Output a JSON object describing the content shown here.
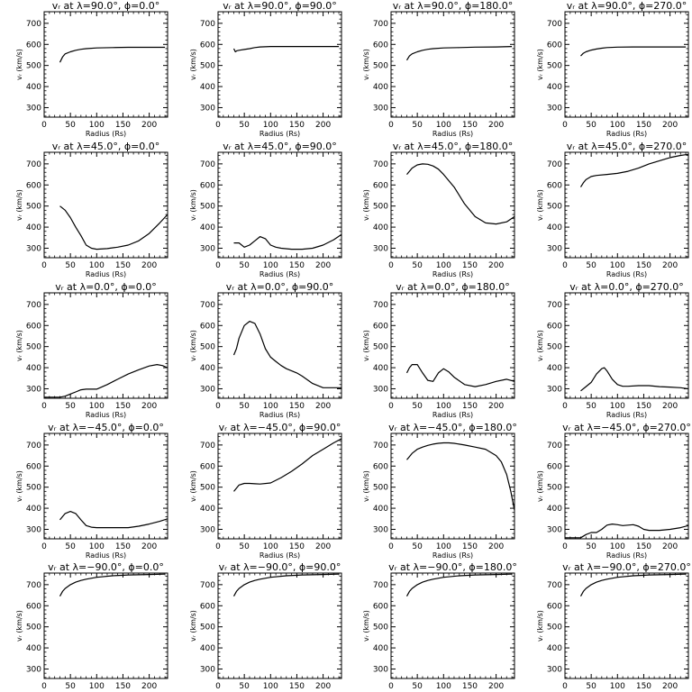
{
  "figure": {
    "xlabel": "Radius (Rs)",
    "ylabel": "vᵣ (km/s)",
    "xlim": [
      0,
      235
    ],
    "ylim": [
      255,
      755
    ],
    "xticks": [
      0,
      50,
      100,
      150,
      200
    ],
    "yticks": [
      300,
      400,
      500,
      600,
      700
    ]
  },
  "chart_data": [
    {
      "type": "line",
      "title": "vᵣ at λ=90.0°, ϕ=0.0°",
      "x": [
        30,
        35,
        40,
        50,
        60,
        70,
        80,
        100,
        130,
        160,
        200,
        230
      ],
      "values": [
        515,
        540,
        555,
        565,
        572,
        577,
        580,
        583,
        585,
        586,
        586,
        586
      ]
    },
    {
      "type": "line",
      "title": "vᵣ at λ=90.0°, ϕ=90.0°",
      "x": [
        30,
        33,
        36,
        40,
        50,
        60,
        70,
        80,
        100,
        150,
        200,
        230
      ],
      "values": [
        580,
        565,
        570,
        572,
        576,
        580,
        585,
        588,
        590,
        590,
        590,
        590
      ]
    },
    {
      "type": "line",
      "title": "vᵣ at λ=90.0°, ϕ=180.0°",
      "x": [
        30,
        35,
        40,
        50,
        60,
        70,
        80,
        100,
        130,
        160,
        200,
        230
      ],
      "values": [
        525,
        545,
        555,
        565,
        572,
        577,
        580,
        583,
        585,
        587,
        588,
        590
      ]
    },
    {
      "type": "line",
      "title": "vᵣ at λ=90.0°, ϕ=270.0°",
      "x": [
        30,
        35,
        40,
        50,
        60,
        70,
        80,
        100,
        130,
        160,
        200,
        230
      ],
      "values": [
        545,
        558,
        565,
        573,
        578,
        582,
        585,
        587,
        588,
        588,
        588,
        588
      ]
    },
    {
      "type": "line",
      "title": "vᵣ at λ=45.0°, ϕ=0.0°",
      "x": [
        30,
        40,
        50,
        60,
        70,
        80,
        90,
        100,
        120,
        140,
        160,
        180,
        200,
        220,
        235
      ],
      "values": [
        500,
        480,
        445,
        400,
        360,
        315,
        300,
        295,
        298,
        305,
        315,
        335,
        370,
        420,
        460
      ]
    },
    {
      "type": "line",
      "title": "vᵣ at λ=45.0°, ϕ=90.0°",
      "x": [
        30,
        40,
        50,
        60,
        70,
        80,
        90,
        100,
        110,
        120,
        140,
        160,
        180,
        200,
        220,
        235
      ],
      "values": [
        325,
        325,
        305,
        315,
        335,
        355,
        345,
        315,
        305,
        300,
        295,
        295,
        300,
        315,
        340,
        365
      ]
    },
    {
      "type": "line",
      "title": "vᵣ at λ=45.0°, ϕ=180.0°",
      "x": [
        30,
        40,
        50,
        60,
        70,
        80,
        90,
        100,
        120,
        140,
        160,
        180,
        200,
        220,
        235
      ],
      "values": [
        650,
        680,
        695,
        700,
        698,
        690,
        675,
        650,
        590,
        510,
        450,
        420,
        415,
        425,
        450
      ]
    },
    {
      "type": "line",
      "title": "vᵣ at λ=45.0°, ϕ=270.0°",
      "x": [
        30,
        35,
        40,
        50,
        60,
        80,
        100,
        120,
        140,
        160,
        180,
        200,
        220,
        235
      ],
      "values": [
        590,
        610,
        625,
        640,
        645,
        650,
        655,
        665,
        680,
        700,
        715,
        730,
        740,
        745
      ]
    },
    {
      "type": "line",
      "title": "vᵣ at λ=0.0°, ϕ=0.0°",
      "x": [
        0,
        30,
        40,
        50,
        60,
        70,
        80,
        100,
        120,
        140,
        160,
        180,
        200,
        215,
        225,
        235
      ],
      "values": [
        260,
        260,
        265,
        275,
        285,
        295,
        298,
        298,
        320,
        345,
        370,
        390,
        408,
        415,
        410,
        400
      ]
    },
    {
      "type": "line",
      "title": "vᵣ at λ=0.0°, ϕ=90.0°",
      "x": [
        30,
        35,
        40,
        50,
        60,
        70,
        80,
        90,
        100,
        110,
        120,
        130,
        140,
        150,
        160,
        180,
        200,
        235
      ],
      "values": [
        460,
        490,
        540,
        600,
        620,
        610,
        560,
        490,
        450,
        430,
        410,
        395,
        385,
        375,
        360,
        325,
        305,
        305
      ]
    },
    {
      "type": "line",
      "title": "vᵣ at λ=0.0°, ϕ=180.0°",
      "x": [
        30,
        35,
        40,
        50,
        60,
        70,
        80,
        90,
        100,
        110,
        120,
        140,
        160,
        180,
        200,
        220,
        235
      ],
      "values": [
        375,
        400,
        415,
        415,
        375,
        340,
        335,
        375,
        395,
        380,
        355,
        320,
        310,
        320,
        335,
        345,
        335
      ]
    },
    {
      "type": "line",
      "title": "vᵣ at λ=0.0°, ϕ=270.0°",
      "x": [
        30,
        40,
        50,
        60,
        70,
        75,
        80,
        90,
        100,
        110,
        120,
        140,
        160,
        180,
        200,
        220,
        235
      ],
      "values": [
        290,
        310,
        330,
        370,
        395,
        400,
        385,
        345,
        320,
        312,
        312,
        315,
        315,
        310,
        308,
        305,
        300
      ]
    },
    {
      "type": "line",
      "title": "vᵣ at λ=−45.0°, ϕ=0.0°",
      "x": [
        30,
        40,
        50,
        60,
        70,
        80,
        90,
        100,
        130,
        160,
        180,
        200,
        220,
        235
      ],
      "values": [
        345,
        375,
        385,
        375,
        345,
        318,
        310,
        308,
        308,
        308,
        315,
        325,
        338,
        350
      ]
    },
    {
      "type": "line",
      "title": "vᵣ at λ=−45.0°, ϕ=90.0°",
      "x": [
        30,
        40,
        50,
        60,
        70,
        80,
        100,
        120,
        140,
        160,
        180,
        200,
        220,
        235
      ],
      "values": [
        480,
        510,
        518,
        518,
        516,
        515,
        520,
        545,
        575,
        610,
        650,
        680,
        710,
        730
      ]
    },
    {
      "type": "line",
      "title": "vᵣ at λ=−45.0°, ϕ=180.0°",
      "x": [
        30,
        40,
        50,
        60,
        70,
        80,
        90,
        100,
        110,
        120,
        140,
        160,
        180,
        200,
        210,
        220,
        228,
        235
      ],
      "values": [
        630,
        660,
        680,
        690,
        698,
        704,
        708,
        710,
        710,
        708,
        700,
        690,
        680,
        650,
        620,
        560,
        480,
        390
      ]
    },
    {
      "type": "line",
      "title": "vᵣ at λ=−45.0°, ϕ=270.0°",
      "x": [
        0,
        30,
        40,
        50,
        60,
        70,
        80,
        90,
        100,
        110,
        120,
        130,
        140,
        150,
        160,
        180,
        200,
        220,
        235
      ],
      "values": [
        260,
        260,
        275,
        285,
        285,
        300,
        320,
        325,
        322,
        318,
        320,
        322,
        315,
        300,
        295,
        295,
        300,
        308,
        318
      ]
    },
    {
      "type": "line",
      "title": "vᵣ at λ=−90.0°, ϕ=0.0°",
      "x": [
        30,
        35,
        40,
        50,
        60,
        70,
        80,
        100,
        130,
        160,
        200,
        230
      ],
      "values": [
        645,
        668,
        682,
        700,
        712,
        720,
        726,
        735,
        742,
        746,
        748,
        750
      ]
    },
    {
      "type": "line",
      "title": "vᵣ at λ=−90.0°, ϕ=90.0°",
      "x": [
        30,
        35,
        40,
        50,
        60,
        70,
        80,
        100,
        130,
        160,
        200,
        230
      ],
      "values": [
        645,
        668,
        682,
        700,
        712,
        720,
        726,
        735,
        742,
        746,
        748,
        750
      ]
    },
    {
      "type": "line",
      "title": "vᵣ at λ=−90.0°, ϕ=180.0°",
      "x": [
        30,
        35,
        40,
        50,
        60,
        70,
        80,
        100,
        130,
        160,
        200,
        230
      ],
      "values": [
        645,
        668,
        682,
        700,
        712,
        720,
        726,
        735,
        742,
        746,
        748,
        750
      ]
    },
    {
      "type": "line",
      "title": "vᵣ at λ=−90.0°, ϕ=270.0°",
      "x": [
        30,
        35,
        40,
        50,
        60,
        70,
        80,
        100,
        130,
        160,
        200,
        230
      ],
      "values": [
        645,
        668,
        682,
        700,
        712,
        720,
        726,
        735,
        742,
        746,
        748,
        750
      ]
    }
  ]
}
